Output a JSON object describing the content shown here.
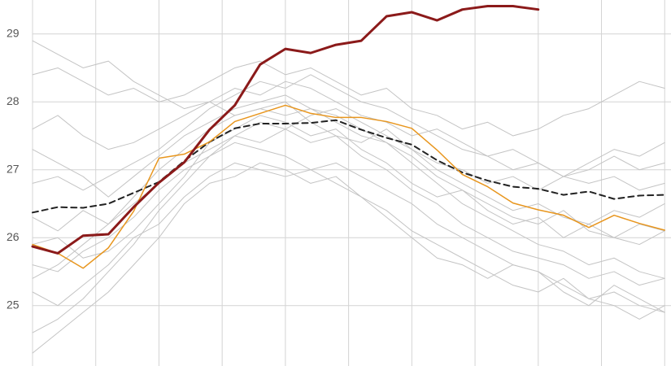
{
  "chart_data": {
    "type": "line",
    "xlim": [
      0,
      101
    ],
    "ylim": [
      24.11,
      29.5
    ],
    "xticks": [
      0,
      10,
      20,
      30,
      40,
      50,
      60,
      70,
      80,
      90,
      100
    ],
    "yticks": [
      25,
      26,
      27,
      28,
      29
    ],
    "grid": true,
    "x": [
      0,
      4,
      8,
      12,
      16,
      20,
      24,
      28,
      32,
      36,
      40,
      44,
      48,
      52,
      56,
      60,
      64,
      68,
      72,
      76,
      80,
      84,
      88,
      92,
      96,
      100
    ],
    "series": [
      {
        "color": "#c4c4c4",
        "width": 1,
        "values": [
          25.4,
          25.6,
          25.9,
          26.2,
          26.6,
          27.0,
          27.3,
          27.6,
          27.8,
          27.9,
          27.8,
          27.9,
          27.7,
          27.5,
          27.4,
          27.1,
          26.8,
          26.5,
          26.3,
          26.1,
          25.9,
          25.8,
          25.6,
          25.7,
          25.5,
          25.4
        ]
      },
      {
        "color": "#c4c4c4",
        "width": 1,
        "values": [
          26.8,
          26.9,
          26.7,
          26.9,
          27.1,
          27.3,
          27.6,
          27.9,
          28.1,
          28.3,
          28.2,
          28.4,
          28.2,
          28.0,
          27.9,
          27.7,
          27.5,
          27.3,
          27.2,
          27.0,
          27.1,
          26.9,
          26.8,
          26.9,
          26.7,
          26.8
        ]
      },
      {
        "color": "#c4c4c4",
        "width": 1,
        "values": [
          24.6,
          24.8,
          25.1,
          25.5,
          25.9,
          26.4,
          26.8,
          27.2,
          27.4,
          27.3,
          27.2,
          27.0,
          27.1,
          26.9,
          26.7,
          26.5,
          26.2,
          26.0,
          25.8,
          25.6,
          25.5,
          25.3,
          25.1,
          25.2,
          25.0,
          24.9
        ]
      },
      {
        "color": "#c4c4c4",
        "width": 1,
        "values": [
          28.4,
          28.5,
          28.3,
          28.1,
          28.2,
          28.0,
          28.1,
          28.3,
          28.5,
          28.6,
          28.4,
          28.5,
          28.3,
          28.1,
          28.2,
          27.9,
          27.8,
          27.6,
          27.7,
          27.5,
          27.6,
          27.8,
          27.9,
          28.1,
          28.3,
          28.2
        ]
      },
      {
        "color": "#c4c4c4",
        "width": 1,
        "values": [
          25.9,
          26.0,
          25.7,
          25.8,
          26.1,
          26.5,
          26.9,
          27.4,
          27.6,
          27.8,
          27.7,
          27.5,
          27.6,
          27.3,
          27.1,
          26.8,
          26.6,
          26.7,
          26.4,
          26.2,
          26.3,
          26.0,
          26.2,
          26.4,
          26.3,
          26.5
        ]
      },
      {
        "color": "#c4c4c4",
        "width": 1,
        "values": [
          27.3,
          27.1,
          26.9,
          26.6,
          26.9,
          27.2,
          27.5,
          27.7,
          27.9,
          28.0,
          28.1,
          27.9,
          27.8,
          27.6,
          27.4,
          27.2,
          26.9,
          26.7,
          26.5,
          26.3,
          26.2,
          26.4,
          26.1,
          26.0,
          26.2,
          26.1
        ]
      },
      {
        "color": "#c4c4c4",
        "width": 1,
        "values": [
          25.2,
          25.0,
          25.3,
          25.6,
          26.0,
          26.2,
          26.6,
          26.9,
          27.1,
          27.0,
          26.9,
          27.0,
          26.8,
          26.6,
          26.4,
          26.1,
          25.9,
          25.7,
          25.5,
          25.3,
          25.2,
          25.4,
          25.1,
          25.0,
          24.8,
          25.0
        ]
      },
      {
        "color": "#c4c4c4",
        "width": 1,
        "values": [
          28.9,
          28.7,
          28.5,
          28.6,
          28.3,
          28.1,
          27.9,
          28.0,
          27.8,
          27.9,
          28.0,
          27.7,
          27.5,
          27.4,
          27.6,
          27.3,
          27.1,
          27.0,
          26.8,
          26.9,
          26.7,
          26.9,
          27.1,
          27.3,
          27.2,
          27.4
        ]
      },
      {
        "color": "#c4c4c4",
        "width": 1,
        "values": [
          26.3,
          26.1,
          26.4,
          26.2,
          26.5,
          26.8,
          27.1,
          27.3,
          27.5,
          27.4,
          27.6,
          27.8,
          27.9,
          27.7,
          27.5,
          27.3,
          27.0,
          26.8,
          26.6,
          26.4,
          26.5,
          26.3,
          26.2,
          26.0,
          25.9,
          26.1
        ]
      },
      {
        "color": "#c4c4c4",
        "width": 1,
        "values": [
          24.3,
          24.6,
          24.9,
          25.2,
          25.6,
          26.0,
          26.5,
          26.8,
          26.9,
          27.1,
          27.0,
          26.8,
          26.9,
          26.6,
          26.3,
          26.0,
          25.7,
          25.6,
          25.4,
          25.6,
          25.5,
          25.2,
          25.0,
          25.3,
          25.1,
          24.9
        ]
      },
      {
        "color": "#c4c4c4",
        "width": 1,
        "values": [
          27.6,
          27.8,
          27.5,
          27.3,
          27.4,
          27.6,
          27.8,
          28.0,
          28.2,
          28.1,
          28.3,
          28.2,
          28.0,
          27.8,
          27.7,
          27.5,
          27.6,
          27.4,
          27.2,
          27.3,
          27.1,
          26.9,
          27.0,
          27.2,
          27.0,
          27.1
        ]
      },
      {
        "color": "#c4c4c4",
        "width": 1,
        "values": [
          25.6,
          25.5,
          25.8,
          26.0,
          26.3,
          26.7,
          27.0,
          27.2,
          27.5,
          27.7,
          27.6,
          27.4,
          27.5,
          27.2,
          27.0,
          26.7,
          26.5,
          26.2,
          26.0,
          25.8,
          25.7,
          25.6,
          25.4,
          25.5,
          25.3,
          25.4
        ]
      },
      {
        "color": "#222222",
        "width": 2,
        "style": "dashed",
        "values": [
          26.37,
          26.45,
          26.44,
          26.5,
          26.66,
          26.82,
          27.13,
          27.41,
          27.61,
          27.68,
          27.68,
          27.69,
          27.73,
          27.59,
          27.47,
          27.37,
          27.14,
          26.96,
          26.84,
          26.75,
          26.72,
          26.63,
          26.68,
          26.57,
          26.62,
          26.63
        ]
      },
      {
        "color": "#e8961e",
        "width": 1.5,
        "values": [
          25.9,
          25.77,
          25.55,
          25.85,
          26.39,
          27.17,
          27.23,
          27.41,
          27.71,
          27.83,
          27.95,
          27.83,
          27.77,
          27.77,
          27.71,
          27.61,
          27.29,
          26.93,
          26.75,
          26.51,
          26.41,
          26.33,
          26.15,
          26.33,
          26.21,
          26.11
        ]
      },
      {
        "color": "#8b1a1a",
        "width": 3,
        "values": [
          25.87,
          25.77,
          26.03,
          26.05,
          26.45,
          26.81,
          27.11,
          27.59,
          27.95,
          28.55,
          28.78,
          28.72,
          28.84,
          28.9,
          29.26,
          29.32,
          29.2,
          29.36,
          29.41,
          29.41,
          29.36,
          null,
          null,
          null,
          null,
          null
        ]
      }
    ]
  }
}
